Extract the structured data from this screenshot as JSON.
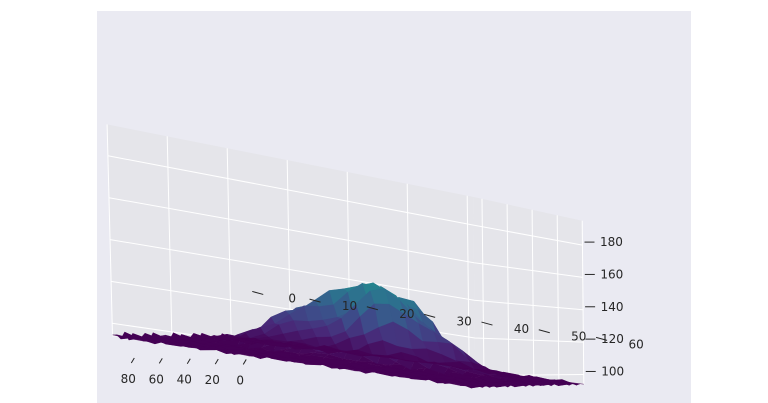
{
  "chart_data": {
    "type": "surface",
    "title": "",
    "xlabel": "",
    "ylabel": "",
    "zlabel": "",
    "colormap": "viridis",
    "style": "seaborn darkgrid",
    "xlim": [
      0,
      87
    ],
    "ylim": [
      0,
      61
    ],
    "zlim": [
      94,
      195
    ],
    "x_ticks": [
      0,
      20,
      40,
      60,
      80
    ],
    "y_ticks": [
      0,
      10,
      20,
      30,
      40,
      50,
      60
    ],
    "z_ticks": [
      100,
      120,
      140,
      160,
      180
    ],
    "x_tick_labels": [
      "0",
      "20",
      "40",
      "60",
      "80"
    ],
    "y_tick_labels": [
      "0",
      "10",
      "20",
      "30",
      "40",
      "50",
      "60"
    ],
    "z_tick_labels": [
      "100",
      "120",
      "140",
      "160",
      "180"
    ],
    "view": {
      "elev": 30,
      "azim": -60
    },
    "grid": true,
    "colors": {
      "panel": "#eaeaf2",
      "pane": "#e5e5ea",
      "grid": "#ffffff",
      "text": "#262626"
    }
  }
}
